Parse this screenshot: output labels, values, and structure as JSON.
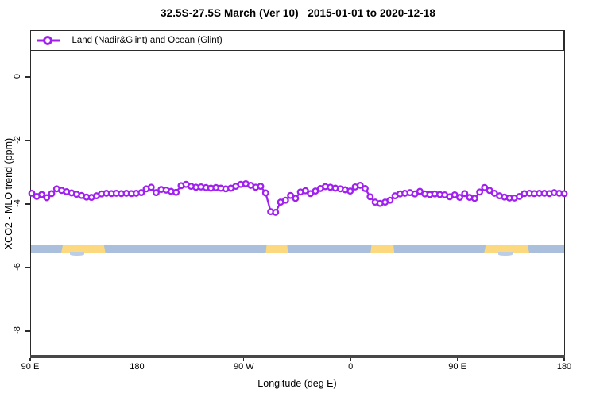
{
  "title": "32.5S-27.5S March (Ver 10)   2015-01-01 to 2020-12-18",
  "legend": {
    "label": "Land (Nadir&Glint) and Ocean (Glint)",
    "marker": "open-circle-on-line",
    "color": "#A020F0"
  },
  "axes": {
    "x": {
      "label": "Longitude (deg E)",
      "tick_labels": [
        "90 E",
        "180",
        "90 W",
        "0",
        "90 E",
        "180"
      ]
    },
    "y": {
      "label": "XCO2 - MLO trend (ppm)",
      "tick_labels": [
        "0",
        "-2",
        "-4",
        "-6",
        "-8"
      ],
      "tick_values": [
        0,
        -2,
        -4,
        -6,
        -8
      ]
    }
  },
  "chart_data": {
    "type": "line",
    "title": "32.5S-27.5S March (Ver 10)   2015-01-01 to 2020-12-18",
    "xlabel": "Longitude (deg E)",
    "ylabel": "XCO2 - MLO trend (ppm)",
    "x_axis_span_deg_east_continuous": [
      90,
      540
    ],
    "ylim": [
      -8.8,
      1.5
    ],
    "grid": false,
    "legend_position": "top-left-full-width-box",
    "series": [
      {
        "name": "Land (Nadir&Glint) and Ocean (Glint)",
        "color": "#A020F0",
        "marker": "open-circle",
        "n_points": 108,
        "x_lon_degE_start": 91.3,
        "x_lon_degE_step": 4.19,
        "values": [
          -3.66,
          -3.76,
          -3.7,
          -3.8,
          -3.67,
          -3.52,
          -3.57,
          -3.61,
          -3.65,
          -3.69,
          -3.73,
          -3.78,
          -3.79,
          -3.74,
          -3.68,
          -3.66,
          -3.67,
          -3.66,
          -3.67,
          -3.66,
          -3.67,
          -3.66,
          -3.64,
          -3.52,
          -3.47,
          -3.64,
          -3.54,
          -3.56,
          -3.6,
          -3.63,
          -3.42,
          -3.38,
          -3.44,
          -3.47,
          -3.46,
          -3.48,
          -3.5,
          -3.48,
          -3.5,
          -3.52,
          -3.5,
          -3.44,
          -3.38,
          -3.36,
          -3.41,
          -3.47,
          -3.44,
          -3.65,
          -4.24,
          -4.26,
          -3.94,
          -3.88,
          -3.73,
          -3.82,
          -3.62,
          -3.58,
          -3.67,
          -3.59,
          -3.51,
          -3.45,
          -3.47,
          -3.5,
          -3.52,
          -3.55,
          -3.59,
          -3.46,
          -3.41,
          -3.51,
          -3.77,
          -3.94,
          -3.98,
          -3.94,
          -3.88,
          -3.74,
          -3.68,
          -3.66,
          -3.64,
          -3.68,
          -3.6,
          -3.68,
          -3.7,
          -3.68,
          -3.7,
          -3.71,
          -3.77,
          -3.71,
          -3.79,
          -3.67,
          -3.79,
          -3.82,
          -3.62,
          -3.48,
          -3.57,
          -3.66,
          -3.74,
          -3.78,
          -3.81,
          -3.81,
          -3.76,
          -3.67,
          -3.66,
          -3.67,
          -3.66,
          -3.66,
          -3.67,
          -3.64,
          -3.66,
          -3.67
        ]
      }
    ],
    "map_strip": {
      "description": "land/ocean band drawn across plot near -5.4 ppm",
      "ocean_color": "#A9BFDC",
      "land_color": "#FCD87F",
      "bump_color": "#BCCEE7",
      "land_segments_lon_degE": [
        [
          116.1,
          153.5
        ],
        [
          288.5,
          307.3
        ],
        [
          376.8,
          396.9
        ],
        [
          472.5,
          510.6
        ]
      ],
      "bump_segments_lon_degE": [
        [
          123.4,
          135.5
        ],
        [
          484.5,
          496.5
        ]
      ]
    }
  }
}
